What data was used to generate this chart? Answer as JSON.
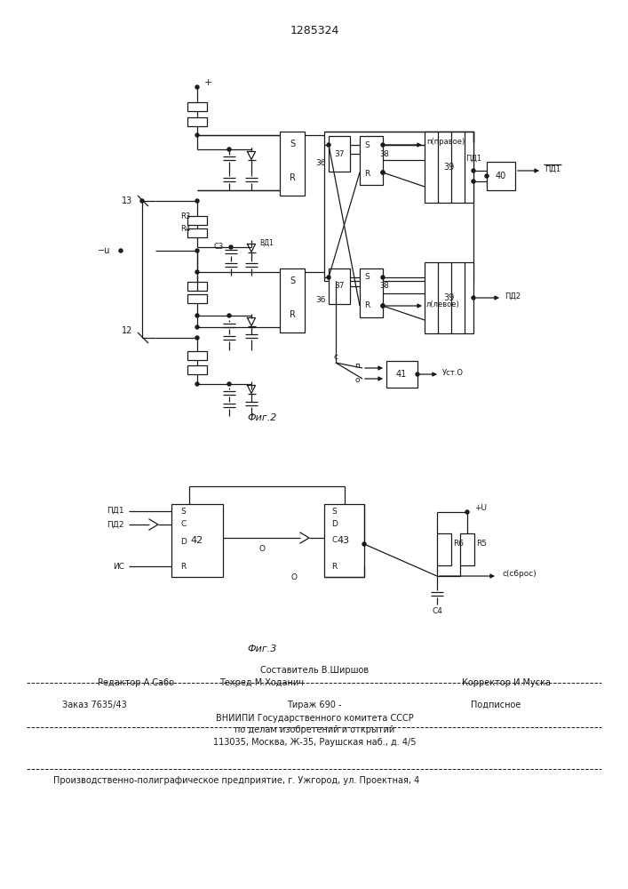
{
  "title": "1285324",
  "fig2_label": "Фиг.2",
  "fig3_label": "Фиг.3",
  "footer_composer": "Составитель В.Ширшов",
  "footer_editor": "Редактор А.Сабо",
  "footer_techred": "Техред М.Ходанич",
  "footer_corrector": "Корректор И.Муска",
  "footer_order": "Заказ 7635/43",
  "footer_tirazh": "Тираж 690 -",
  "footer_podp": "Подписное",
  "footer_vniip": "ВНИИПИ Государственного комитета СССР",
  "footer_dela": "по делам изобретений и открытий",
  "footer_addr": "113035, Москва, Ж-35, Раушская наб., д. 4/5",
  "footer_ugz": "Производственно-полиграфическое предприятие, г. Ужгород, ул. Проектная, 4"
}
